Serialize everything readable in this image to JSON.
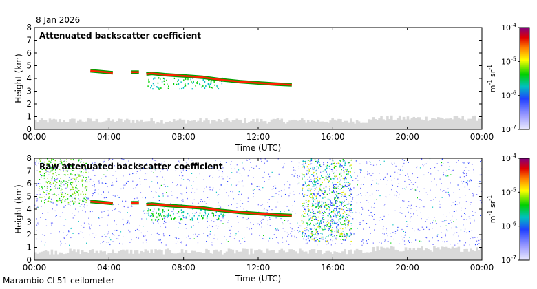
{
  "date_label": "8 Jan 2026",
  "footer_label": "Marambio CL51 ceilometer",
  "colors": {
    "background_gray": "#d9d9d9",
    "cloud_layer": "#ff2000",
    "colorbar_stops": [
      "#ecebff",
      "#9a9aff",
      "#2040ff",
      "#00c0c0",
      "#00d000",
      "#ffff00",
      "#ff8000",
      "#e00000",
      "#800080"
    ]
  },
  "chart_data": [
    {
      "type": "heatmap",
      "title": "Attenuated backscatter coefficient",
      "xlabel": "Time (UTC)",
      "ylabel": "Height (km)",
      "x_ticks": [
        "00:00",
        "04:00",
        "08:00",
        "12:00",
        "16:00",
        "20:00",
        "00:00"
      ],
      "x_range_hours": [
        0,
        24
      ],
      "y_ticks": [
        0,
        1,
        2,
        3,
        4,
        5,
        6,
        7,
        8
      ],
      "ylim": [
        0,
        8
      ],
      "colorbar": {
        "ticks": [
          "10-7",
          "10-6",
          "10-5",
          "10-4"
        ],
        "label": "m-1 sr-1",
        "range": [
          1e-07,
          0.0001
        ]
      },
      "cloud_layer": {
        "time_h": [
          3.0,
          3.4,
          3.8,
          4.2,
          5.2,
          5.6,
          6.0,
          6.3,
          7.0,
          8.0,
          9.0,
          10.0,
          11.0,
          12.0,
          13.0,
          13.8
        ],
        "height_km": [
          4.6,
          4.55,
          4.5,
          4.45,
          4.5,
          4.5,
          4.35,
          4.4,
          4.3,
          4.2,
          4.1,
          3.9,
          3.75,
          3.65,
          3.55,
          3.5
        ]
      }
    },
    {
      "type": "heatmap",
      "title": "Raw attenuated backscatter coefficient",
      "xlabel": "Time (UTC)",
      "ylabel": "Height (km)",
      "x_ticks": [
        "00:00",
        "04:00",
        "08:00",
        "12:00",
        "16:00",
        "20:00",
        "00:00"
      ],
      "x_range_hours": [
        0,
        24
      ],
      "y_ticks": [
        0,
        1,
        2,
        3,
        4,
        5,
        6,
        7,
        8
      ],
      "ylim": [
        0,
        8
      ],
      "colorbar": {
        "ticks": [
          "10-7",
          "10-6",
          "10-5",
          "10-4"
        ],
        "label": "m-1 sr-1",
        "range": [
          1e-07,
          0.0001
        ]
      },
      "cloud_layer": {
        "time_h": [
          3.0,
          3.4,
          3.8,
          4.2,
          5.2,
          5.6,
          6.0,
          6.3,
          7.0,
          8.0,
          9.0,
          10.0,
          11.0,
          12.0,
          13.0,
          13.8
        ],
        "height_km": [
          4.6,
          4.55,
          4.5,
          4.45,
          4.5,
          4.5,
          4.35,
          4.4,
          4.3,
          4.2,
          4.1,
          3.9,
          3.75,
          3.65,
          3.55,
          3.5
        ]
      }
    }
  ]
}
